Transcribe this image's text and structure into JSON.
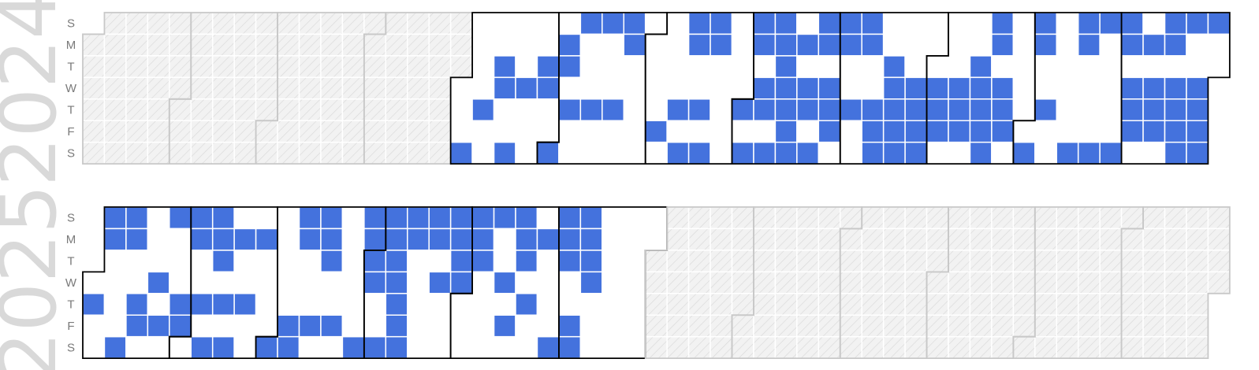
{
  "chart_data": {
    "type": "heatmap",
    "title": "",
    "day_labels": [
      "S",
      "M",
      "T",
      "W",
      "T",
      "F",
      "S"
    ],
    "colors": {
      "active": "#4472dd",
      "inactive": "#ffffff",
      "out_of_range_fill": "#f2f2f2",
      "out_of_range_hatch": "#d9d9d9",
      "month_border_in_range": "#000000",
      "month_border_out_of_range": "#c8c8c8",
      "year_label": "#d9d9d9",
      "day_label": "#7a7a7a"
    },
    "years": [
      {
        "year": "2024",
        "range_start": "2024-05-01",
        "range_end": "2024-12-31",
        "active_dates": [
          "2024-05-04",
          "2024-05-09",
          "2024-05-14",
          "2024-05-15",
          "2024-05-18",
          "2024-05-22",
          "2024-05-28",
          "2024-05-29",
          "2024-06-01",
          "2024-06-03",
          "2024-06-04",
          "2024-06-06",
          "2024-06-09",
          "2024-06-13",
          "2024-06-16",
          "2024-06-20",
          "2024-06-23",
          "2024-06-24",
          "2024-07-05",
          "2024-07-11",
          "2024-07-13",
          "2024-07-14",
          "2024-07-15",
          "2024-07-18",
          "2024-07-20",
          "2024-07-21",
          "2024-07-22",
          "2024-08-01",
          "2024-08-03",
          "2024-08-04",
          "2024-08-05",
          "2024-08-07",
          "2024-08-08",
          "2024-08-10",
          "2024-08-11",
          "2024-08-12",
          "2024-08-13",
          "2024-08-14",
          "2024-08-15",
          "2024-08-16",
          "2024-08-17",
          "2024-08-19",
          "2024-08-21",
          "2024-08-22",
          "2024-08-24",
          "2024-08-25",
          "2024-08-26",
          "2024-08-28",
          "2024-08-29",
          "2024-08-30",
          "2024-09-01",
          "2024-09-02",
          "2024-09-05",
          "2024-09-08",
          "2024-09-09",
          "2024-09-12",
          "2024-09-13",
          "2024-09-14",
          "2024-09-17",
          "2024-09-18",
          "2024-09-19",
          "2024-09-20",
          "2024-09-21",
          "2024-09-25",
          "2024-09-26",
          "2024-09-27",
          "2024-09-28",
          "2024-10-02",
          "2024-10-03",
          "2024-10-04",
          "2024-10-09",
          "2024-10-10",
          "2024-10-11",
          "2024-10-15",
          "2024-10-16",
          "2024-10-17",
          "2024-10-18",
          "2024-10-19",
          "2024-10-20",
          "2024-10-21",
          "2024-10-23",
          "2024-10-24",
          "2024-10-25",
          "2024-11-02",
          "2024-11-03",
          "2024-11-04",
          "2024-11-07",
          "2024-11-16",
          "2024-11-17",
          "2024-11-18",
          "2024-11-23",
          "2024-11-24",
          "2024-11-30",
          "2024-12-01",
          "2024-12-02",
          "2024-12-04",
          "2024-12-05",
          "2024-12-06",
          "2024-12-09",
          "2024-12-11",
          "2024-12-12",
          "2024-12-13",
          "2024-12-15",
          "2024-12-16",
          "2024-12-18",
          "2024-12-19",
          "2024-12-20",
          "2024-12-21",
          "2024-12-22",
          "2024-12-25",
          "2024-12-26",
          "2024-12-27",
          "2024-12-28",
          "2024-12-29"
        ]
      },
      {
        "year": "2025",
        "range_start": "2025-01-01",
        "range_end": "2025-06-30",
        "active_dates": [
          "2025-01-02",
          "2025-01-05",
          "2025-01-06",
          "2025-01-11",
          "2025-01-12",
          "2025-01-13",
          "2025-01-16",
          "2025-01-17",
          "2025-01-22",
          "2025-01-24",
          "2025-01-26",
          "2025-01-30",
          "2025-01-31",
          "2025-02-02",
          "2025-02-03",
          "2025-02-06",
          "2025-02-08",
          "2025-02-09",
          "2025-02-10",
          "2025-02-11",
          "2025-02-13",
          "2025-02-15",
          "2025-02-17",
          "2025-02-20",
          "2025-02-24",
          "2025-03-01",
          "2025-03-07",
          "2025-03-08",
          "2025-03-09",
          "2025-03-10",
          "2025-03-14",
          "2025-03-16",
          "2025-03-17",
          "2025-03-18",
          "2025-03-21",
          "2025-03-29",
          "2025-03-30",
          "2025-03-31",
          "2025-04-01",
          "2025-04-02",
          "2025-04-05",
          "2025-04-06",
          "2025-04-07",
          "2025-04-08",
          "2025-04-09",
          "2025-04-10",
          "2025-04-11",
          "2025-04-12",
          "2025-04-13",
          "2025-04-14",
          "2025-04-20",
          "2025-04-21",
          "2025-04-23",
          "2025-04-27",
          "2025-04-28",
          "2025-04-29",
          "2025-04-30",
          "2025-05-04",
          "2025-05-05",
          "2025-05-06",
          "2025-05-11",
          "2025-05-14",
          "2025-05-16",
          "2025-05-18",
          "2025-05-19",
          "2025-05-20",
          "2025-05-22",
          "2025-05-26",
          "2025-05-31",
          "2025-06-01",
          "2025-06-02",
          "2025-06-03",
          "2025-06-06",
          "2025-06-07",
          "2025-06-08",
          "2025-06-09",
          "2025-06-10",
          "2025-06-11"
        ]
      }
    ]
  }
}
